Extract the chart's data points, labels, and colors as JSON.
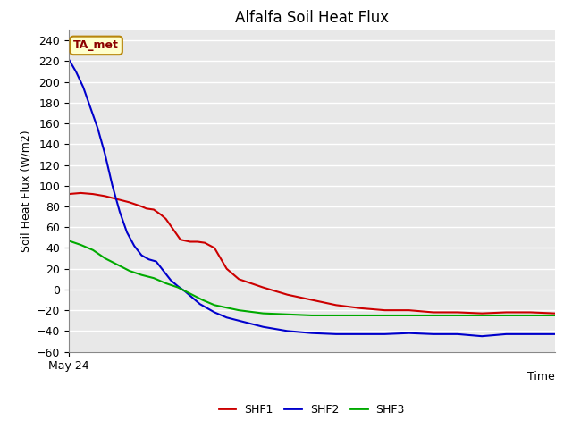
{
  "title": "Alfalfa Soil Heat Flux",
  "ylabel": "Soil Heat Flux (W/m2)",
  "xlabel": "Time",
  "ylim": [
    -60,
    250
  ],
  "yticks": [
    -60,
    -40,
    -20,
    0,
    20,
    40,
    60,
    80,
    100,
    120,
    140,
    160,
    180,
    200,
    220,
    240
  ],
  "xlabel_start": "May 24",
  "annotation_label": "TA_met",
  "annotation_color": "#8B0000",
  "annotation_bg": "#FFFFCC",
  "annotation_border": "#B8860B",
  "plot_bg_color": "#E8E8E8",
  "fig_bg_color": "#FFFFFF",
  "grid_color": "#FFFFFF",
  "series": {
    "SHF1": {
      "color": "#CC0000",
      "x": [
        0,
        0.5,
        1,
        1.5,
        2,
        2.5,
        3,
        3.2,
        3.5,
        3.8,
        4,
        4.3,
        4.6,
        5,
        5.3,
        5.6,
        6,
        6.5,
        7,
        8,
        9,
        10,
        11,
        12,
        13,
        14,
        15,
        16,
        17,
        18,
        19,
        20
      ],
      "y": [
        92,
        93,
        92,
        90,
        87,
        84,
        80,
        78,
        77,
        72,
        68,
        58,
        48,
        46,
        46,
        45,
        40,
        20,
        10,
        2,
        -5,
        -10,
        -15,
        -18,
        -20,
        -20,
        -22,
        -22,
        -23,
        -22,
        -22,
        -23
      ]
    },
    "SHF2": {
      "color": "#0000CC",
      "x": [
        0,
        0.3,
        0.6,
        0.9,
        1.2,
        1.5,
        1.8,
        2.1,
        2.4,
        2.7,
        3,
        3.3,
        3.6,
        3.9,
        4.2,
        4.5,
        4.8,
        5.1,
        5.4,
        5.7,
        6,
        6.5,
        7,
        8,
        9,
        10,
        11,
        12,
        13,
        14,
        15,
        16,
        17,
        18,
        19,
        20
      ],
      "y": [
        222,
        210,
        195,
        175,
        155,
        130,
        100,
        75,
        55,
        42,
        33,
        29,
        27,
        18,
        9,
        3,
        -2,
        -8,
        -14,
        -18,
        -22,
        -27,
        -30,
        -36,
        -40,
        -42,
        -43,
        -43,
        -43,
        -42,
        -43,
        -43,
        -45,
        -43,
        -43,
        -43
      ]
    },
    "SHF3": {
      "color": "#00AA00",
      "x": [
        0,
        0.5,
        1,
        1.5,
        2,
        2.5,
        3,
        3.5,
        4,
        4.5,
        5,
        5.5,
        6,
        7,
        8,
        9,
        10,
        11,
        12,
        13,
        14,
        15,
        16,
        17,
        18,
        19,
        20
      ],
      "y": [
        47,
        43,
        38,
        30,
        24,
        18,
        14,
        11,
        6,
        2,
        -4,
        -10,
        -15,
        -20,
        -23,
        -24,
        -25,
        -25,
        -25,
        -25,
        -25,
        -25,
        -25,
        -25,
        -25,
        -25,
        -25
      ]
    }
  },
  "legend": [
    {
      "label": "SHF1",
      "color": "#CC0000"
    },
    {
      "label": "SHF2",
      "color": "#0000CC"
    },
    {
      "label": "SHF3",
      "color": "#00AA00"
    }
  ]
}
